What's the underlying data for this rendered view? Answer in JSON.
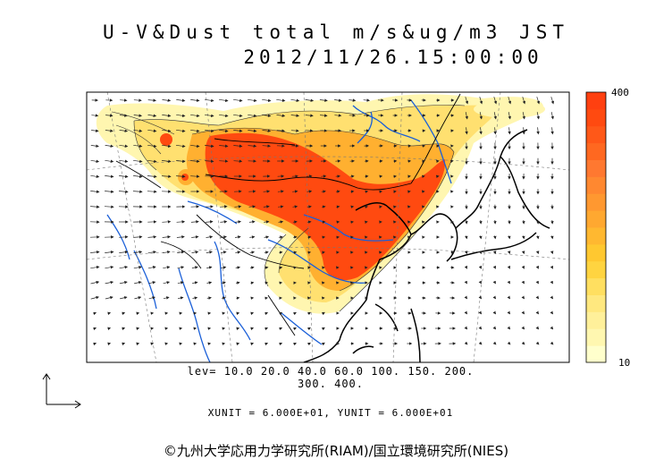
{
  "title": {
    "line1": "U-V&Dust total m/s&ug/m3 JST",
    "line2": "2012/11/26.15:00:00"
  },
  "legend": {
    "max_label": "400",
    "min_label": "10",
    "colors": [
      "#ffffcc",
      "#fff7b0",
      "#fff09a",
      "#ffe87f",
      "#ffdf60",
      "#ffd440",
      "#ffc830",
      "#ffb830",
      "#ffa830",
      "#ff9830",
      "#ff8830",
      "#ff7830",
      "#ff6820",
      "#ff5818",
      "#ff4a10",
      "#ff4010"
    ]
  },
  "levels": {
    "line1": "lev= 10.0 20.0 40.0 60.0 100. 150. 200.",
    "line2": "300. 400."
  },
  "units_text": "XUNIT = 6.000E+01, YUNIT = 6.000E+01",
  "credit": "©九州大学応用力学研究所(RIAM)/国立環境研究所(NIES)",
  "colors": {
    "coastline": "#000000",
    "rivers": "#1a5fd8",
    "dust_high": "#ff4a10",
    "dust_mid": "#ffb830",
    "dust_low": "#fff4a0"
  }
}
